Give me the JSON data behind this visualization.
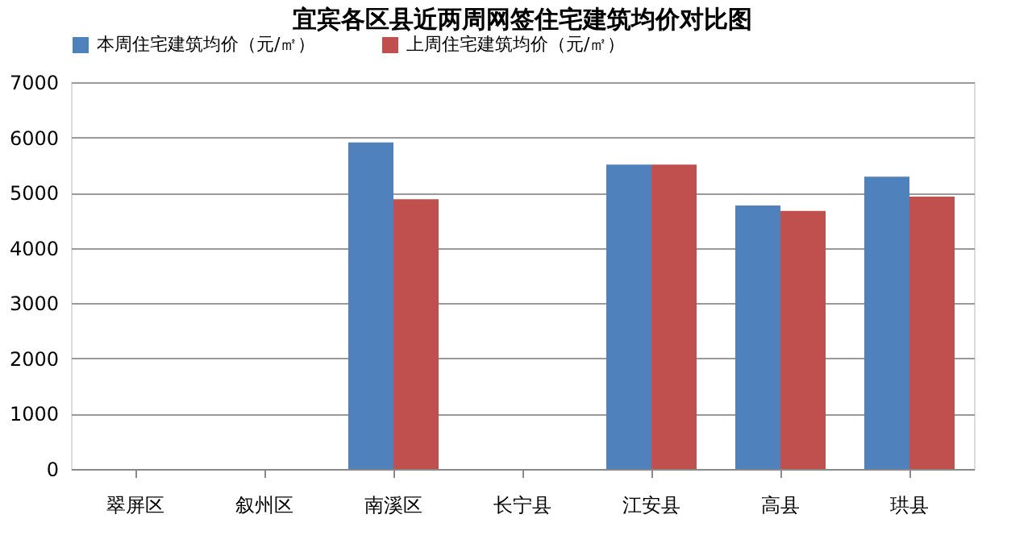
{
  "chart_data": {
    "type": "bar",
    "title": "宜宾各区县近两周网签住宅建筑均价对比图",
    "categories": [
      "翠屏区",
      "叙州区",
      "南溪区",
      "长宁县",
      "江安县",
      "高县",
      "珙县"
    ],
    "series": [
      {
        "name": "本周住宅建筑均价（元/㎡）",
        "color": "#4f81bd",
        "values": [
          null,
          null,
          5910,
          null,
          5510,
          4770,
          5290
        ]
      },
      {
        "name": "上周住宅建筑均价（元/㎡）",
        "color": "#c0504d",
        "values": [
          null,
          null,
          4880,
          null,
          5510,
          4670,
          4930
        ]
      }
    ],
    "ylim": [
      0,
      7000
    ],
    "yticks": [
      0,
      1000,
      2000,
      3000,
      4000,
      5000,
      6000,
      7000
    ],
    "grid": "y",
    "legend": "top"
  }
}
